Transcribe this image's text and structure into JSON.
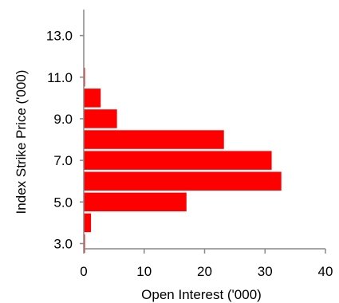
{
  "chart_data": {
    "type": "bar",
    "orientation": "horizontal",
    "title": "",
    "xlabel": "Open Interest ('000)",
    "ylabel": "Index Strike Price ('000)",
    "xlim": [
      0,
      40
    ],
    "ylim": [
      2.75,
      14.25
    ],
    "x_ticks": [
      0,
      10,
      20,
      30,
      40
    ],
    "x_tick_labels": [
      "0",
      "10",
      "20",
      "30",
      "40"
    ],
    "y_ticks": [
      3,
      5,
      7,
      9,
      11,
      13
    ],
    "y_tick_labels": [
      "3.0",
      "5.0",
      "7.0",
      "9.0",
      "11.0",
      "13.0"
    ],
    "grid": false,
    "legend": "none",
    "bar_color": "#ff0000",
    "bar_height": 0.9,
    "bars": [
      {
        "strike": 3.0,
        "value": 0.2
      },
      {
        "strike": 4.0,
        "value": 1.2
      },
      {
        "strike": 5.0,
        "value": 17
      },
      {
        "strike": 6.0,
        "value": 32.7
      },
      {
        "strike": 7.0,
        "value": 31.1
      },
      {
        "strike": 8.0,
        "value": 23.2
      },
      {
        "strike": 9.0,
        "value": 5.5
      },
      {
        "strike": 10.0,
        "value": 2.8
      },
      {
        "strike": 11.0,
        "value": 0.2
      }
    ]
  }
}
